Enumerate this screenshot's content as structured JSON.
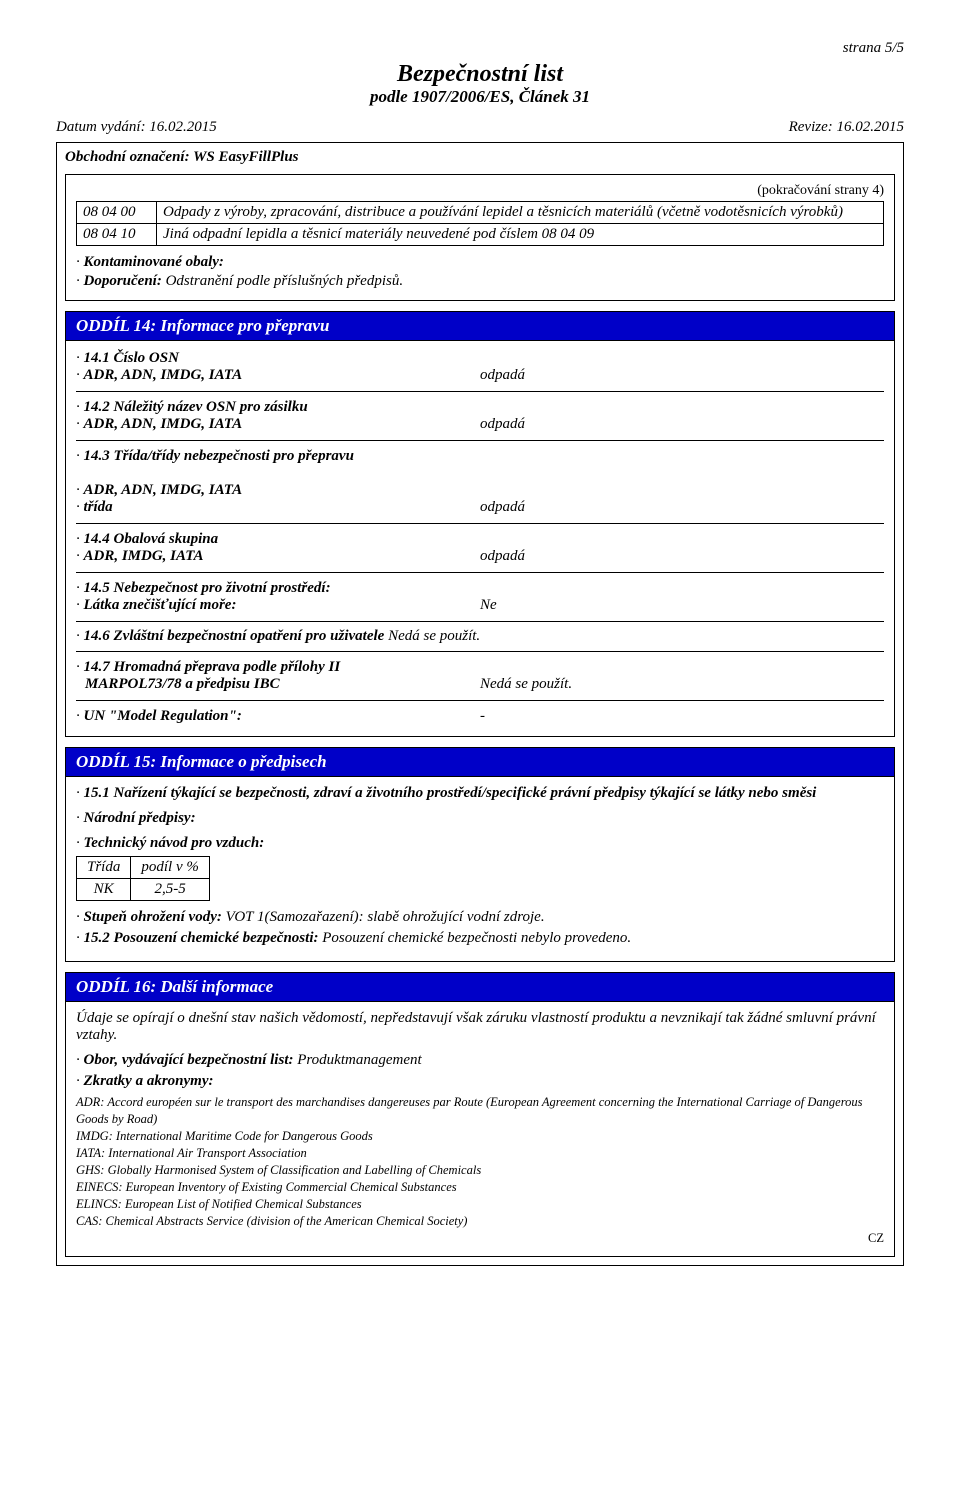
{
  "page": {
    "page_indicator": "strana 5/5",
    "title": "Bezpečnostní list",
    "subtitle": "podle 1907/2006/ES, Článek 31",
    "issue_date_label": "Datum vydání: 16.02.2015",
    "revision_label": "Revize: 16.02.2015",
    "trade_name_label": "Obchodní označení: WS EasyFillPlus",
    "continuation_note": "(pokračování  strany 4)",
    "country_code": "CZ"
  },
  "waste_table": {
    "rows": [
      {
        "code": "08 04 00",
        "text": "Odpady z výroby, zpracování, distribuce a používání lepidel a těsnicích materiálů (včetně vodotěsnicích výrobků)"
      },
      {
        "code": "08 04 10",
        "text": "Jiná odpadní lepidla a těsnicí materiály neuvedené pod číslem 08 04 09"
      }
    ],
    "contaminated_label": "Kontaminované obaly:",
    "recommendation_label": "Doporučení:",
    "recommendation_text": " Odstranění podle příslušných předpisů."
  },
  "section14": {
    "header": "ODDÍL 14: Informace pro přepravu",
    "items": [
      {
        "l1_lbl": "14.1 Číslo OSN",
        "l2_lbl": "ADR, ADN, IMDG, IATA",
        "val": "odpadá"
      },
      {
        "l1_lbl": "14.2 Náležitý název OSN pro zásilku",
        "l2_lbl": "ADR, ADN, IMDG, IATA",
        "val": "odpadá"
      },
      {
        "l1_lbl": "14.3 Třída/třídy nebezpečnosti pro přepravu",
        "l2_lbl": "ADR, ADN, IMDG, IATA",
        "l3_lbl": "třída",
        "val": "odpadá",
        "blank_after_l1": true
      },
      {
        "l1_lbl": "14.4 Obalová skupina",
        "l2_lbl": "ADR, IMDG, IATA",
        "val": "odpadá"
      },
      {
        "l1_lbl": "14.5 Nebezpečnost pro životní prostředí:",
        "l2_lbl": "Látka znečišťující moře:",
        "val": "Ne"
      }
    ],
    "item6_lbl": "14.6 Zvláštní bezpečnostní opatření pro uživatele",
    "item6_val": " Nedá se použít.",
    "item7_l1": "14.7 Hromadná přeprava podle přílohy II",
    "item7_l2": "MARPOL73/78 a předpisu IBC",
    "item7_val": "Nedá se použít.",
    "un_model_lbl": "UN \"Model Regulation\":",
    "un_model_val": "-"
  },
  "section15": {
    "header": "ODDÍL 15: Informace o předpisech",
    "p1_lbl": "15.1 Nařízení týkající se bezpečnosti, zdraví a životního prostředí/specifické právní předpisy týkající se látky nebo směsi",
    "national_lbl": "Národní předpisy:",
    "tech_lbl": "Technický návod pro vzduch:",
    "tech_table": {
      "h1": "Třída",
      "h2": "podíl v %",
      "c1": "NK",
      "c2": "2,5-5"
    },
    "water_lbl": "Stupeň ohrožení vody:",
    "water_text": " VOT 1(Samozařazení): slabě ohrožující vodní zdroje.",
    "p2_lbl": "15.2 Posouzení chemické bezpečnosti:",
    "p2_text": " Posouzení chemické bezpečnosti nebylo provedeno."
  },
  "section16": {
    "header": "ODDÍL 16: Další informace",
    "intro": "Údaje se opírají o dnešní stav našich vědomostí, nepředstavují však záruku vlastností produktu a nevznikají tak žádné smluvní právní vztahy.",
    "dept_lbl": "Obor, vydávající bezpečnostní list:",
    "dept_val": " Produktmanagement",
    "abbrev_lbl": "Zkratky a akronymy:",
    "abbrev_lines": [
      "ADR: Accord européen sur le transport des marchandises dangereuses par Route (European Agreement concerning the International Carriage of Dangerous Goods by Road)",
      "IMDG: International Maritime Code for Dangerous Goods",
      "IATA: International Air Transport Association",
      "GHS: Globally Harmonised System of Classification and Labelling of Chemicals",
      "EINECS: European Inventory of Existing Commercial Chemical Substances",
      "ELINCS: European List of Notified Chemical Substances",
      "CAS: Chemical Abstracts Service (division of the American Chemical Society)"
    ]
  }
}
